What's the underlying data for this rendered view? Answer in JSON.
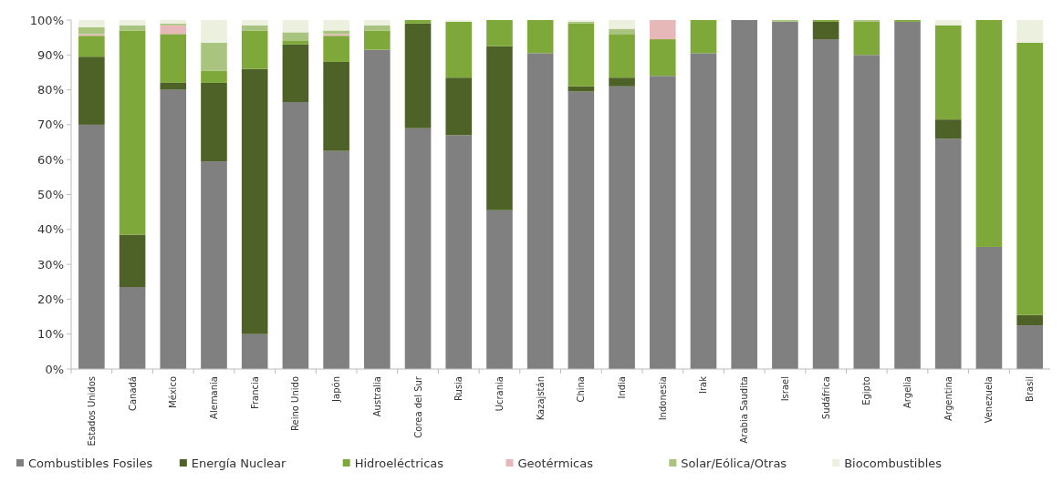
{
  "chart_data": {
    "type": "bar",
    "stacked": true,
    "categories": [
      "Estados Unidos",
      "Canadá",
      "México",
      "Alemania",
      "Francia",
      "Reino Unido",
      "Japón",
      "Australia",
      "Corea del Sur",
      "Rusia",
      "Ucrania",
      "Kazajstán",
      "China",
      "India",
      "Indonesia",
      "Irak",
      "Arabia Saudita",
      "Israel",
      "Sudáfrica",
      "Egipto",
      "Argelia",
      "Argentina",
      "Venezuela",
      "Brasil"
    ],
    "series": [
      {
        "name": "Combustibles Fosiles",
        "color": "#808080",
        "values": [
          70,
          23.5,
          80,
          59.5,
          10,
          76.5,
          62.5,
          91.5,
          69,
          67,
          45.5,
          90.5,
          79.5,
          81,
          84,
          90.5,
          100,
          99.5,
          94.5,
          90,
          99.5,
          66,
          35,
          12.5
        ]
      },
      {
        "name": "Energía Nuclear",
        "color": "#4e6228",
        "values": [
          19.5,
          15,
          2,
          22.5,
          76,
          16.5,
          25.5,
          0,
          30,
          16.5,
          47,
          0,
          1.5,
          2.5,
          0,
          0,
          0,
          0,
          5,
          0,
          0,
          5.5,
          0,
          3
        ]
      },
      {
        "name": "Hidroeléctricas",
        "color": "#7fa83a",
        "values": [
          6,
          58.5,
          14,
          3.5,
          11,
          1,
          7.5,
          5.5,
          1,
          16,
          7.5,
          9.5,
          18,
          12.5,
          10.5,
          9.5,
          0,
          0,
          0.5,
          9.5,
          0.5,
          27,
          65,
          78
        ]
      },
      {
        "name": "Geotérmicas",
        "color": "#e6b9b8",
        "values": [
          0.5,
          0,
          2.5,
          0,
          0,
          0,
          0.5,
          0,
          0,
          0,
          0,
          0,
          0,
          0,
          5.5,
          0,
          0,
          0,
          0,
          0,
          0,
          0,
          0,
          0
        ]
      },
      {
        "name": "Solar/Eólica/Otras",
        "color": "#a9c47f",
        "values": [
          2,
          1.5,
          0.5,
          8,
          1.5,
          2.5,
          1,
          1.5,
          0,
          0,
          0,
          0,
          0.5,
          1.5,
          0,
          0,
          0,
          0.5,
          0,
          0.5,
          0,
          0,
          0,
          0
        ]
      },
      {
        "name": "Biocombustibles",
        "color": "#ebf1de",
        "values": [
          2,
          1.5,
          1,
          6.5,
          1.5,
          3.5,
          3,
          1.5,
          0,
          0.5,
          0,
          0,
          0.5,
          2.5,
          0,
          0,
          0,
          0,
          0,
          0,
          0,
          1.5,
          0,
          6.5
        ]
      }
    ],
    "ylim": [
      0,
      100
    ],
    "yticks": [
      {
        "value": 0,
        "label": "0%"
      },
      {
        "value": 10,
        "label": "10%"
      },
      {
        "value": 20,
        "label": "20%"
      },
      {
        "value": 30,
        "label": "30%"
      },
      {
        "value": 40,
        "label": "40%"
      },
      {
        "value": 50,
        "label": "50%"
      },
      {
        "value": 60,
        "label": "60%"
      },
      {
        "value": 70,
        "label": "70%"
      },
      {
        "value": 80,
        "label": "80%"
      },
      {
        "value": 90,
        "label": "90%"
      },
      {
        "value": 100,
        "label": "100%"
      }
    ],
    "legend": "bottom"
  }
}
